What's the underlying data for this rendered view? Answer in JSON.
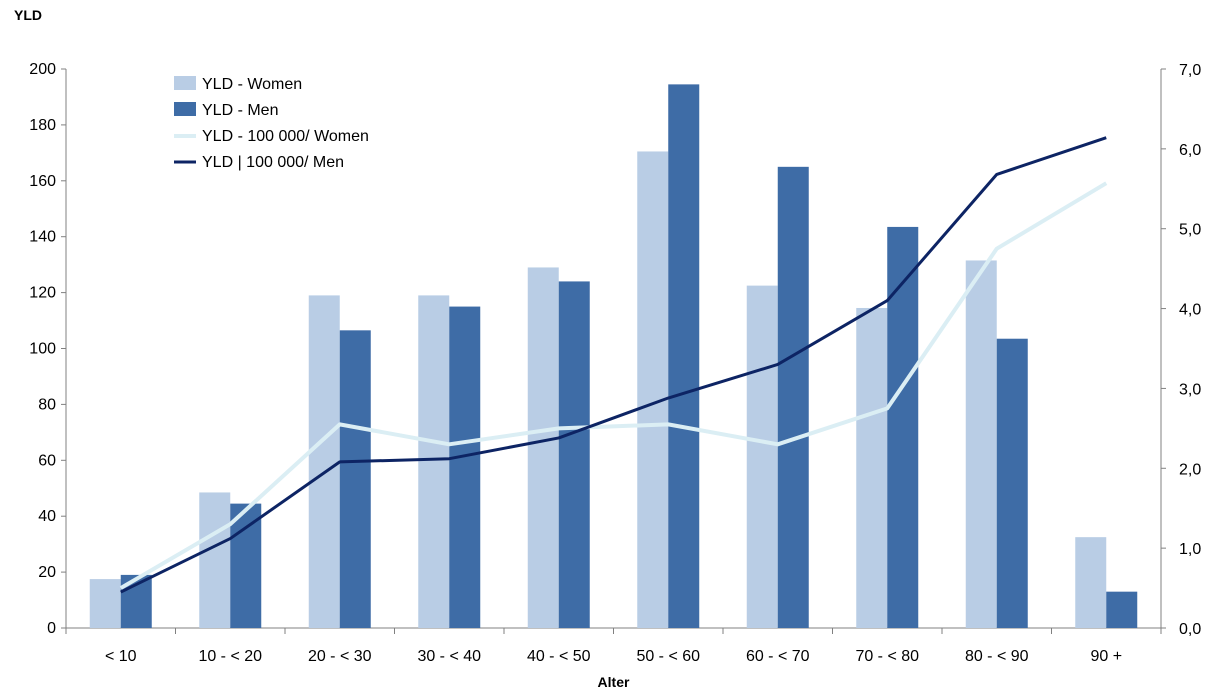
{
  "chart_data": {
    "type": "bar",
    "title": "",
    "xlabel": "Alter",
    "ylabel": "YLD",
    "categories": [
      "< 10",
      "10 - < 20",
      "20 - < 30",
      "30 - < 40",
      "40 - < 50",
      "50 - < 60",
      "60 - < 70",
      "70 - < 80",
      "80 - < 90",
      "90 +"
    ],
    "ylim": [
      0,
      200
    ],
    "yticks": [
      "0",
      "20",
      "40",
      "60",
      "80",
      "100",
      "120",
      "140",
      "160",
      "180",
      "200"
    ],
    "y2lim": [
      0,
      7
    ],
    "y2ticks": [
      "0,0",
      "1,0",
      "2,0",
      "3,0",
      "4,0",
      "5,0",
      "6,0",
      "7,0"
    ],
    "legend_position": "top-left",
    "grid": false,
    "series": [
      {
        "name": "YLD -   Women",
        "kind": "bar",
        "axis": "left",
        "color": "#b9cde5",
        "values": [
          17.5,
          48.5,
          119,
          119,
          129,
          170.5,
          122.5,
          114.5,
          131.5,
          32.5
        ]
      },
      {
        "name": "YLD -   Men",
        "kind": "bar",
        "axis": "left",
        "color": "#3e6ca6",
        "values": [
          19,
          44.5,
          106.5,
          115,
          124,
          194.5,
          165,
          143.5,
          103.5,
          13
        ]
      },
      {
        "name": "YLD -  100 000/ Women",
        "kind": "line",
        "axis": "right",
        "color": "#dbeef4",
        "values": [
          0.5,
          1.3,
          2.55,
          2.3,
          2.5,
          2.55,
          2.3,
          2.75,
          4.75,
          5.57
        ]
      },
      {
        "name": "YLD | 100 000/ Men",
        "kind": "line",
        "axis": "right",
        "color": "#0d2464",
        "values": [
          0.45,
          1.12,
          2.08,
          2.12,
          2.38,
          2.88,
          3.3,
          4.1,
          5.68,
          6.14
        ]
      }
    ]
  }
}
